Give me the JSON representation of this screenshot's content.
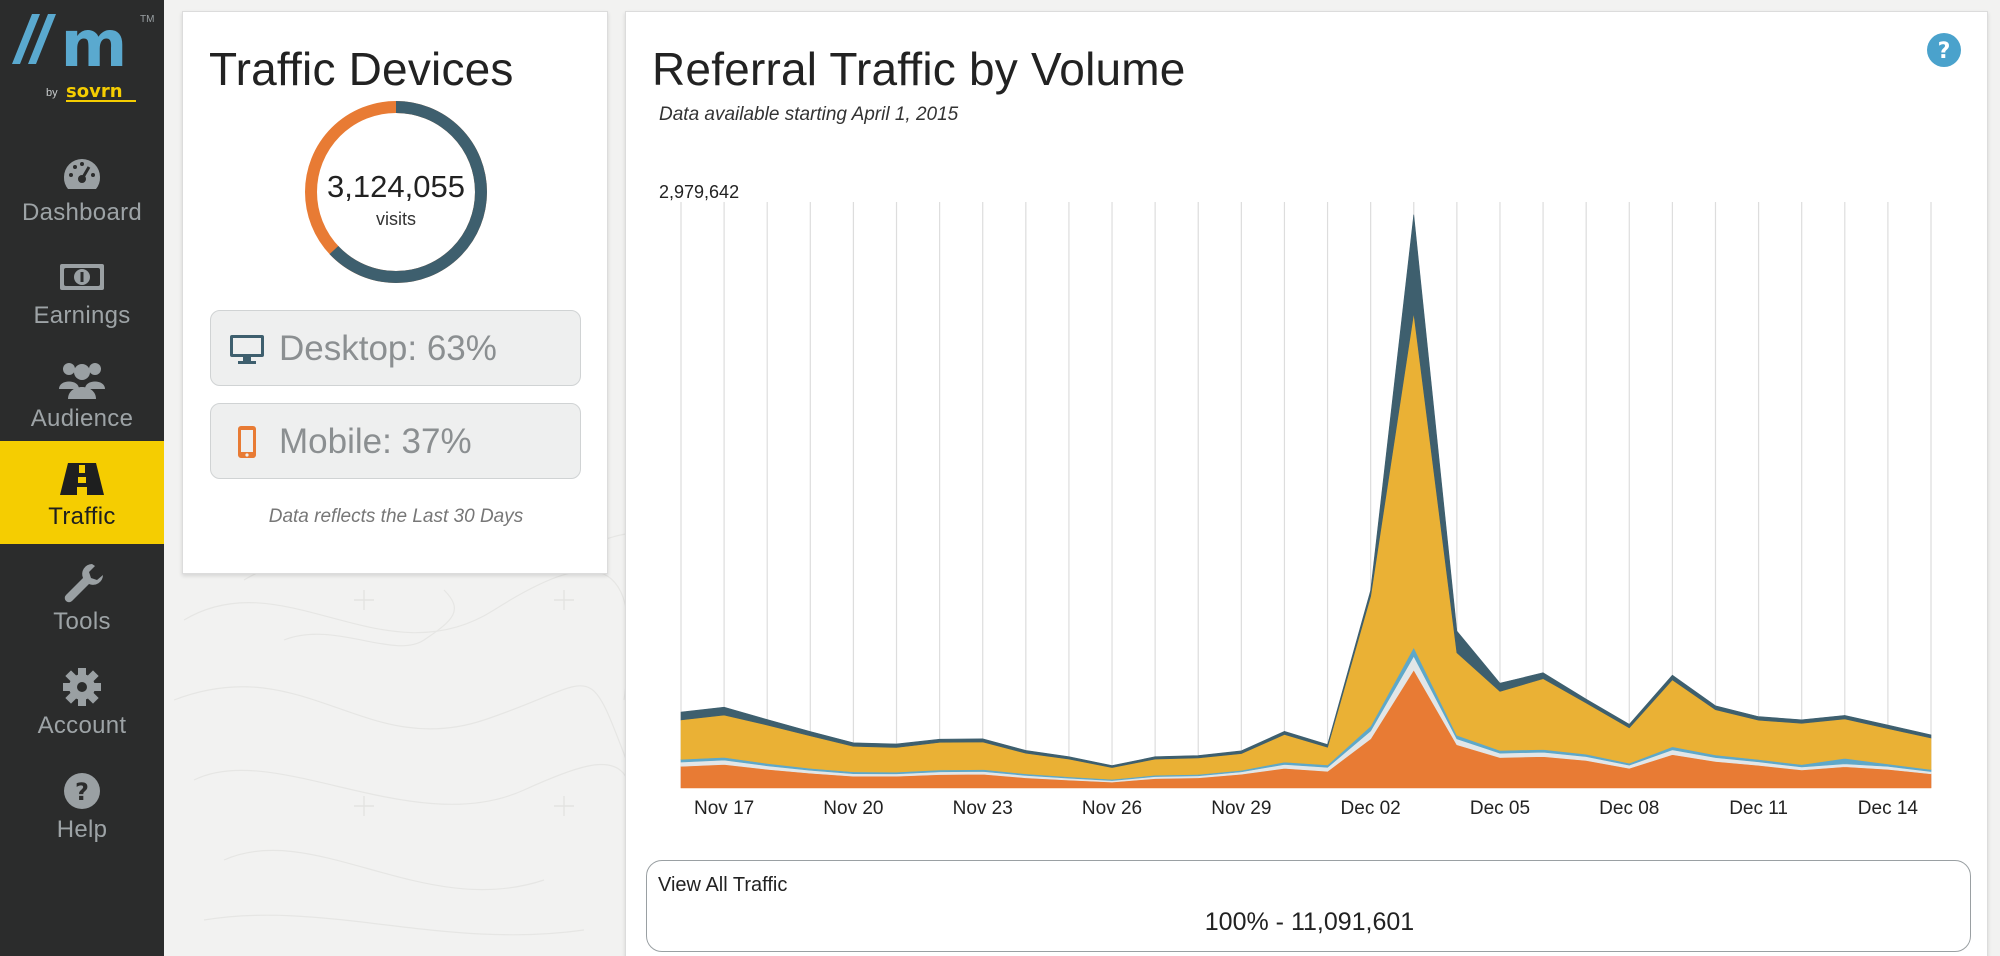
{
  "logo": {
    "letter": "m",
    "tm": "TM",
    "by": "by",
    "brand": "sovrn"
  },
  "sidebar": {
    "items": [
      {
        "label": "Dashboard",
        "icon": "gauge-icon",
        "active": false
      },
      {
        "label": "Earnings",
        "icon": "money-icon",
        "active": false
      },
      {
        "label": "Audience",
        "icon": "users-icon",
        "active": false
      },
      {
        "label": "Traffic",
        "icon": "road-icon",
        "active": true
      },
      {
        "label": "Tools",
        "icon": "wrench-icon",
        "active": false
      },
      {
        "label": "Account",
        "icon": "gear-icon",
        "active": false
      },
      {
        "label": "Help",
        "icon": "question-icon",
        "active": false
      }
    ]
  },
  "devices": {
    "title": "Traffic Devices",
    "total": "3,124,055",
    "unit": "visits",
    "desktop_label": "Desktop: 63%",
    "mobile_label": "Mobile: 37%",
    "desktop_share": 0.63,
    "mobile_share": 0.37,
    "note": "Data reflects the Last 30 Days",
    "colors": {
      "desktop": "#3e5f6e",
      "mobile": "#e87b34"
    }
  },
  "referral": {
    "title": "Referral Traffic by Volume",
    "subtitle": "Data available starting April 1, 2015",
    "help_icon": "help-circle-icon",
    "view_all_label": "View All Traffic",
    "view_all_value": "100% - 11,091,601"
  },
  "chart_data": {
    "type": "area",
    "stacked": true,
    "ymax_label": "2,979,642",
    "ylim": [
      0,
      2979642
    ],
    "grid": true,
    "x_dates": [
      "Nov 16",
      "Nov 17",
      "Nov 18",
      "Nov 19",
      "Nov 20",
      "Nov 21",
      "Nov 22",
      "Nov 23",
      "Nov 24",
      "Nov 25",
      "Nov 26",
      "Nov 27",
      "Nov 28",
      "Nov 29",
      "Nov 30",
      "Dec 01",
      "Dec 02",
      "Dec 03",
      "Dec 04",
      "Dec 05",
      "Dec 06",
      "Dec 07",
      "Dec 08",
      "Dec 09",
      "Dec 10",
      "Dec 11",
      "Dec 12",
      "Dec 13",
      "Dec 14",
      "Dec 15"
    ],
    "x_tick_labels": [
      "Nov 17",
      "Nov 20",
      "Nov 23",
      "Nov 26",
      "Nov 29",
      "Dec 02",
      "Dec 05",
      "Dec 08",
      "Dec 11",
      "Dec 14"
    ],
    "x_tick_indices": [
      1,
      4,
      7,
      10,
      13,
      16,
      19,
      22,
      25,
      28
    ],
    "series": [
      {
        "color": "#e87b34",
        "values": [
          110000,
          120000,
          95000,
          75000,
          60000,
          60000,
          68000,
          70000,
          52000,
          40000,
          30000,
          48000,
          52000,
          70000,
          100000,
          85000,
          250000,
          600000,
          220000,
          155000,
          160000,
          140000,
          100000,
          170000,
          135000,
          115000,
          92000,
          108000,
          95000,
          72000
        ]
      },
      {
        "color": "#e2e6e7",
        "values": [
          22000,
          22000,
          18000,
          15000,
          13000,
          12000,
          14000,
          14000,
          12000,
          10000,
          8000,
          10000,
          10000,
          12000,
          20000,
          20000,
          40000,
          70000,
          30000,
          22000,
          22000,
          20000,
          16000,
          24000,
          20000,
          18000,
          15000,
          15000,
          15000,
          12000
        ]
      },
      {
        "color": "#5ea8c9",
        "values": [
          14000,
          14000,
          12000,
          10000,
          9000,
          9000,
          10000,
          10000,
          8000,
          7000,
          6000,
          7000,
          7000,
          8000,
          12000,
          12000,
          25000,
          45000,
          18000,
          14000,
          14000,
          12000,
          10000,
          16000,
          13000,
          12000,
          12000,
          28000,
          12000,
          10000
        ]
      },
      {
        "color": "#eab135",
        "values": [
          200000,
          215000,
          195000,
          165000,
          130000,
          125000,
          140000,
          140000,
          105000,
          90000,
          60000,
          82000,
          84000,
          85000,
          140000,
          90000,
          660000,
          1700000,
          420000,
          300000,
          360000,
          260000,
          180000,
          340000,
          230000,
          200000,
          210000,
          200000,
          180000,
          160000
        ]
      },
      {
        "color": "#3e5f6e",
        "values": [
          40000,
          40000,
          28000,
          22000,
          18000,
          18000,
          16000,
          16000,
          14000,
          12000,
          10000,
          12000,
          12000,
          14000,
          16000,
          14000,
          30000,
          500000,
          110000,
          42000,
          30000,
          20000,
          18000,
          24000,
          20000,
          18000,
          18000,
          18000,
          18000,
          16000
        ]
      }
    ]
  }
}
